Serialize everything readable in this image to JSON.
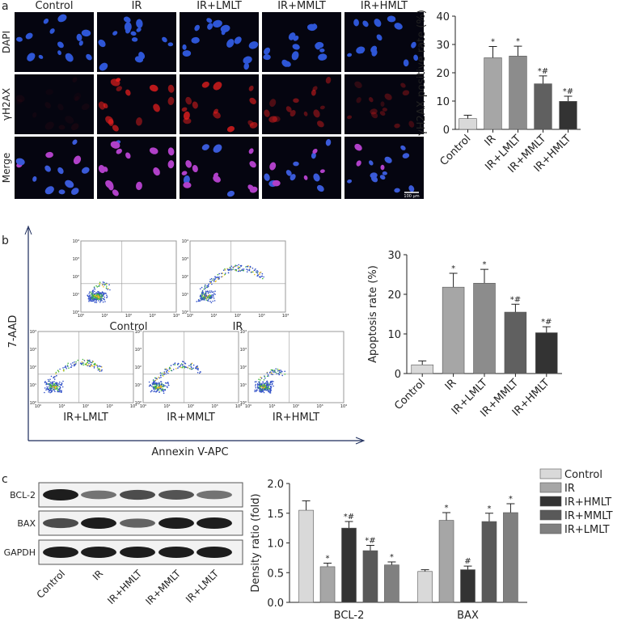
{
  "panel_labels": [
    "a",
    "b",
    "c"
  ],
  "microscopy": {
    "columns": [
      "Control",
      "IR",
      "IR+LMLT",
      "IR+MMLT",
      "IR+HMLT"
    ],
    "rows": [
      "DAPI",
      "γH2AX",
      "Merge"
    ],
    "scale_bar": "100 μm"
  },
  "flow": {
    "y_label": "7-AAD",
    "x_label": "Annexin V-APC",
    "plots": [
      "Control",
      "IR",
      "IR+LMLT",
      "IR+MMLT",
      "IR+HMLT"
    ],
    "ticks": [
      "10⁰",
      "10¹",
      "10²",
      "10³",
      "10⁴"
    ]
  },
  "western": {
    "rows": [
      "BCL-2",
      "BAX",
      "GAPDH"
    ],
    "lanes": [
      "Control",
      "IR",
      "IR+HMLT",
      "IR+MMLT",
      "IR+LMLT"
    ]
  },
  "chart_data": [
    {
      "type": "bar",
      "y_label": "γH2AX positive rate (%)",
      "categories": [
        "Control",
        "IR",
        "IR+LMLT",
        "IR+MMLT",
        "IR+HMLT"
      ],
      "values": [
        3.8,
        25.3,
        25.9,
        16.1,
        9.9
      ],
      "errors": [
        1.2,
        4.0,
        3.5,
        2.8,
        1.8
      ],
      "annotations": [
        null,
        "*",
        "*",
        "*#",
        "*#"
      ],
      "colors": [
        "#d9d9d9",
        "#a6a6a6",
        "#8c8c8c",
        "#606060",
        "#333333"
      ],
      "ylim": [
        0,
        40
      ],
      "yticks": [
        0,
        10,
        20,
        30,
        40
      ]
    },
    {
      "type": "bar",
      "y_label": "Apoptosis rate (%)",
      "categories": [
        "Control",
        "IR",
        "IR+LMLT",
        "IR+MMLT",
        "IR+HMLT"
      ],
      "values": [
        2.2,
        21.8,
        22.8,
        15.5,
        10.3
      ],
      "errors": [
        1.0,
        3.5,
        3.5,
        2.0,
        1.5
      ],
      "annotations": [
        null,
        "*",
        "*",
        "*#",
        "*#"
      ],
      "colors": [
        "#d9d9d9",
        "#a6a6a6",
        "#8c8c8c",
        "#606060",
        "#333333"
      ],
      "ylim": [
        0,
        30
      ],
      "yticks": [
        0,
        10,
        20,
        30
      ]
    },
    {
      "type": "grouped_bar",
      "y_label": "Density ratio (fold)",
      "categories": [
        "BCL-2",
        "BAX"
      ],
      "series": [
        {
          "name": "Control",
          "color": "#d9d9d9",
          "values": [
            1.55,
            0.52
          ],
          "errors": [
            0.16,
            0.03
          ],
          "annotations": [
            null,
            null
          ]
        },
        {
          "name": "IR",
          "color": "#a6a6a6",
          "values": [
            0.6,
            1.38
          ],
          "errors": [
            0.06,
            0.13
          ],
          "annotations": [
            "*",
            "*"
          ]
        },
        {
          "name": "IR+HMLT",
          "color": "#333333",
          "values": [
            1.25,
            0.55
          ],
          "errors": [
            0.11,
            0.06
          ],
          "annotations": [
            "*#",
            "#"
          ]
        },
        {
          "name": "IR+MMLT",
          "color": "#595959",
          "values": [
            0.87,
            1.36
          ],
          "errors": [
            0.09,
            0.14
          ],
          "annotations": [
            "*#",
            "*"
          ]
        },
        {
          "name": "IR+LMLT",
          "color": "#808080",
          "values": [
            0.63,
            1.51
          ],
          "errors": [
            0.05,
            0.15
          ],
          "annotations": [
            "*",
            "*"
          ]
        }
      ],
      "ylim": [
        0,
        2.0
      ],
      "yticks": [
        {
          "value": 0,
          "label": "0.0"
        },
        {
          "value": 0.5,
          "label": "0.5"
        },
        {
          "value": 1.0,
          "label": "1.0"
        },
        {
          "value": 1.5,
          "label": "1.5"
        },
        {
          "value": 2.0,
          "label": "2.0"
        }
      ],
      "legend": "top-right"
    }
  ]
}
